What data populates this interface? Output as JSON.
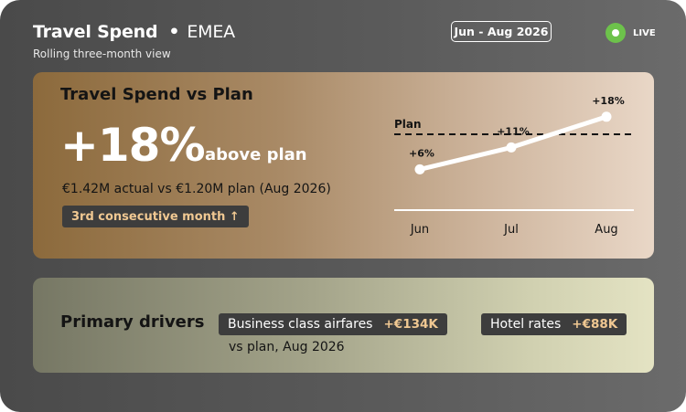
{
  "header": {
    "title": "Travel Spend",
    "separator": "•",
    "region": "EMEA",
    "subtitle": "Rolling three-month view",
    "date_range": "Jun - Aug 2026",
    "live_label": "LIVE"
  },
  "headline": {
    "title": "Travel Spend vs Plan",
    "value": "+18%",
    "suffix": "above plan",
    "detail": "€1.42M actual vs €1.20M plan (Aug 2026)",
    "streak": "3rd consecutive month ↑"
  },
  "drivers": {
    "title": "Primary drivers",
    "items": [
      {
        "name": "Business class airfares",
        "value": "+€134K"
      },
      {
        "name": "Hotel rates",
        "value": "+€88K"
      }
    ],
    "note": "vs plan, Aug 2026"
  },
  "colors": {
    "accent": "#f0c892",
    "live": "#6dc24b",
    "line": "#ffffff",
    "plan_line": "#141414"
  },
  "chart_data": {
    "type": "line",
    "categories": [
      "Jun",
      "Jul",
      "Aug"
    ],
    "series": [
      {
        "values": [
          6,
          11,
          18
        ],
        "labels": [
          "+6%",
          "+11%",
          "+18%"
        ]
      }
    ],
    "plan_label": "Plan",
    "ylim": [
      -6,
      19
    ],
    "plan_value": 14,
    "grid": false
  }
}
